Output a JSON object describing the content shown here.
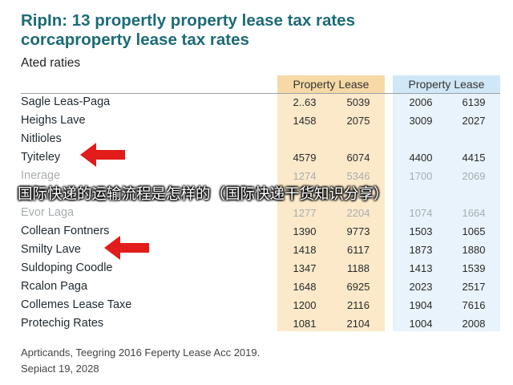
{
  "chart_data": {
    "type": "table",
    "title": "RipIn: 13 propertly property lease tax rates",
    "subtitle": "corcaproperty lease tax rates",
    "section_label": "Ated raties",
    "column_groups": [
      "Property Lease",
      "Property Lease"
    ],
    "rows": [
      {
        "label": "Sagle Leas-Paga",
        "values": [
          "2..63",
          "5039",
          "2006",
          "6139"
        ],
        "faded": false
      },
      {
        "label": "Heighs Lave",
        "values": [
          "1458",
          "2075",
          "3009",
          "2027"
        ],
        "faded": false
      },
      {
        "label": "Nitlioles",
        "values": [
          "",
          "",
          "",
          ""
        ],
        "faded": false
      },
      {
        "label": "Tyiteley",
        "values": [
          "4579",
          "6074",
          "4400",
          "4415"
        ],
        "faded": false
      },
      {
        "label": "Inerage",
        "values": [
          "1274",
          "5346",
          "1700",
          "2069"
        ],
        "faded": true
      },
      {
        "label": "",
        "values": [
          "",
          "",
          "",
          ""
        ],
        "faded": true
      },
      {
        "label": "Evor Laga",
        "values": [
          "1277",
          "2204",
          "1074",
          "1664"
        ],
        "faded": true
      },
      {
        "label": "Collean Fontners",
        "values": [
          "1390",
          "9773",
          "1503",
          "1065"
        ],
        "faded": false
      },
      {
        "label": "Smilty Lave",
        "values": [
          "1418",
          "6117",
          "1873",
          "1880"
        ],
        "faded": false
      },
      {
        "label": "Suldoping Coodle",
        "values": [
          "1347",
          "1188",
          "1413",
          "1539"
        ],
        "faded": false
      },
      {
        "label": "Rcalon Paga",
        "values": [
          "1648",
          "6925",
          "2023",
          "2517"
        ],
        "faded": false
      },
      {
        "label": "Collemes Lease Taxe",
        "values": [
          "1200",
          "2116",
          "1904",
          "7616"
        ],
        "faded": false
      },
      {
        "label": "Protechig Rates",
        "values": [
          "1081",
          "2104",
          "1004",
          "2008"
        ],
        "faded": false
      }
    ],
    "highlighted_rows": [
      "Tyiteley",
      "Smilty Lave"
    ]
  },
  "overlay_caption": "国际快递的运输流程是怎样的（国际快递干货知识分享）",
  "footer": {
    "line1": "Aprticands, Teegring 2016 Feperty Lease Acc 2019.",
    "line2": "Sepiact 19, 2028"
  },
  "colors": {
    "title": "#1c6b77",
    "group_left": "#f6d9a6",
    "group_right": "#cfe7f6",
    "arrow": "#e21b1b"
  }
}
